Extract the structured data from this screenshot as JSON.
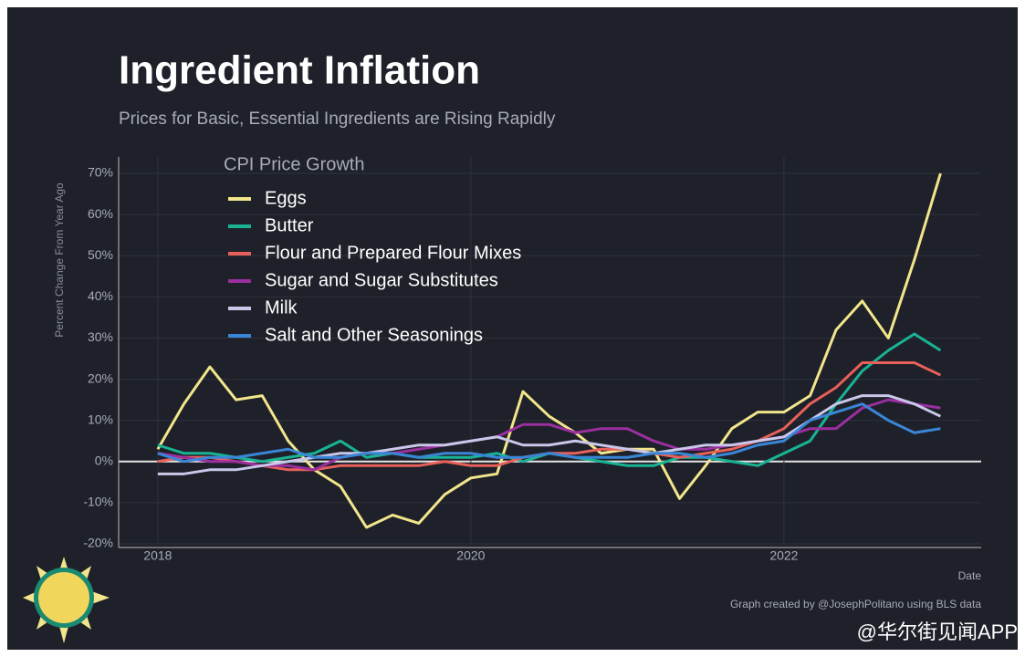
{
  "chart_data": {
    "type": "line",
    "title": "Ingredient Inflation",
    "subtitle": "Prices for Basic, Essential Ingredients are Rising Rapidly",
    "y_label": "Percent Change From Year Ago",
    "x_label": "Date",
    "legend_title": "CPI Price Growth",
    "credit": "Graph created by @JosephPolitano using BLS data",
    "watermark": "@华尔街见闻APP",
    "x": [
      2018,
      2018.167,
      2018.333,
      2018.5,
      2018.667,
      2018.833,
      2019,
      2019.167,
      2019.333,
      2019.5,
      2019.667,
      2019.833,
      2020,
      2020.167,
      2020.333,
      2020.5,
      2020.667,
      2020.833,
      2021,
      2021.167,
      2021.333,
      2021.5,
      2021.667,
      2021.833,
      2022,
      2022.167,
      2022.333,
      2022.5,
      2022.667,
      2022.833,
      2023
    ],
    "xlim": [
      2017.75,
      2023.26
    ],
    "xticks": [
      2018,
      2020,
      2022
    ],
    "ylim": [
      -20,
      74
    ],
    "yticks": [
      {
        "value": -20,
        "label": "-20%"
      },
      {
        "value": -10,
        "label": "-10%"
      },
      {
        "value": 0,
        "label": "0%"
      },
      {
        "value": 10,
        "label": "10%"
      },
      {
        "value": 20,
        "label": "20%"
      },
      {
        "value": 30,
        "label": "30%"
      },
      {
        "value": 40,
        "label": "40%"
      },
      {
        "value": 50,
        "label": "50%"
      },
      {
        "value": 60,
        "label": "60%"
      },
      {
        "value": 70,
        "label": "70%"
      }
    ],
    "grid": true,
    "series": [
      {
        "name": "Eggs",
        "color": "#f2e58c",
        "values": [
          3,
          14,
          23,
          15,
          16,
          5,
          -2,
          -6,
          -16,
          -13,
          -15,
          -8,
          -4,
          -3,
          17,
          11,
          7,
          2,
          3,
          3,
          -9,
          -1,
          8,
          12,
          12,
          16,
          32,
          39,
          30,
          49,
          70
        ]
      },
      {
        "name": "Butter",
        "color": "#19b394",
        "values": [
          4,
          2,
          2,
          1,
          0,
          1,
          2,
          5,
          1,
          2,
          1,
          1,
          1,
          2,
          0,
          2,
          1,
          0,
          -1,
          -1,
          1,
          1,
          0,
          -1,
          2,
          5,
          14,
          22,
          27,
          31,
          27
        ]
      },
      {
        "name": "Flour and Prepared Flour Mixes",
        "color": "#e8605a",
        "values": [
          0,
          1,
          1,
          0,
          -1,
          -2,
          -2,
          -1,
          -1,
          -1,
          -1,
          0,
          -1,
          -1,
          1,
          2,
          2,
          3,
          3,
          2,
          1,
          2,
          3,
          5,
          8,
          14,
          18,
          24,
          24,
          24,
          21
        ]
      },
      {
        "name": "Sugar and Sugar Substitutes",
        "color": "#9b2fa0",
        "values": [
          2,
          1,
          0,
          0,
          -1,
          -1,
          -2,
          1,
          2,
          2,
          3,
          4,
          5,
          6,
          9,
          9,
          7,
          8,
          8,
          5,
          3,
          3,
          4,
          5,
          6,
          8,
          8,
          13,
          15,
          14,
          13
        ]
      },
      {
        "name": "Milk",
        "color": "#c9c7ea",
        "values": [
          -3,
          -3,
          -2,
          -2,
          -1,
          0,
          1,
          2,
          2,
          3,
          4,
          4,
          5,
          6,
          4,
          4,
          5,
          4,
          3,
          2,
          3,
          4,
          4,
          5,
          6,
          10,
          14,
          16,
          16,
          14,
          11
        ]
      },
      {
        "name": "Salt and Other Seasonings",
        "color": "#3a86d6",
        "values": [
          2,
          0,
          1,
          1,
          2,
          3,
          1,
          1,
          2,
          2,
          1,
          2,
          2,
          1,
          1,
          2,
          1,
          1,
          1,
          2,
          2,
          1,
          2,
          4,
          5,
          10,
          12,
          14,
          10,
          7,
          8
        ]
      }
    ]
  }
}
